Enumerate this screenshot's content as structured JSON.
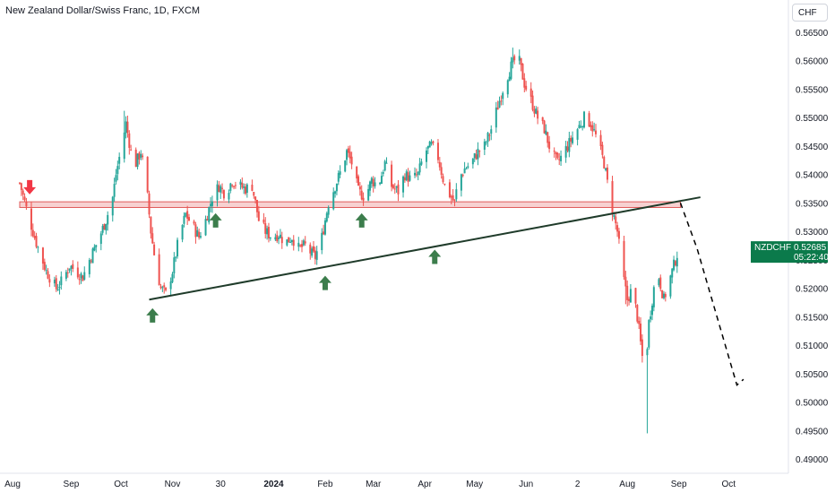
{
  "header": {
    "title": "New Zealand Dollar/Swiss Franc, 1D, FXCM",
    "currency_button": "CHF"
  },
  "price_tag": {
    "symbol": "NZDCHF",
    "price": "0.52685",
    "countdown": "05:22:40",
    "color": "#0b7a4b"
  },
  "colors": {
    "up": "#26a69a",
    "down": "#ef5350",
    "zone_fill": "#f5c6c6",
    "zone_border": "#e05a5a",
    "trendline": "#1f3b2a",
    "arrow_up": "#3c7d4c",
    "arrow_down": "#f23645"
  },
  "chart_data": {
    "type": "candlestick",
    "ylim": [
      0.4875,
      0.5685
    ],
    "y_ticks": [
      "0.56500",
      "0.56000",
      "0.55500",
      "0.55000",
      "0.54500",
      "0.54000",
      "0.53500",
      "0.53000",
      "0.52500",
      "0.52000",
      "0.51500",
      "0.51000",
      "0.50500",
      "0.50000",
      "0.49500",
      "0.49000"
    ],
    "x_ticks": [
      {
        "label": "Aug",
        "day": 0
      },
      {
        "label": "Sep",
        "day": 31
      },
      {
        "label": "Oct",
        "day": 61
      },
      {
        "label": "Nov",
        "day": 92
      },
      {
        "label": "30",
        "day": 121
      },
      {
        "label": "2024",
        "day": 153,
        "bold": true
      },
      {
        "label": "Feb",
        "day": 184
      },
      {
        "label": "Mar",
        "day": 213
      },
      {
        "label": "Apr",
        "day": 244
      },
      {
        "label": "May",
        "day": 274
      },
      {
        "label": "Jun",
        "day": 305
      },
      {
        "label": "2",
        "day": 336
      },
      {
        "label": "Aug",
        "day": 366
      },
      {
        "label": "Sep",
        "day": 397
      },
      {
        "label": "Oct",
        "day": 427
      }
    ],
    "close_path": [
      [
        0,
        0.5385
      ],
      [
        4,
        0.534
      ],
      [
        10,
        0.528
      ],
      [
        16,
        0.523
      ],
      [
        22,
        0.52
      ],
      [
        26,
        0.5215
      ],
      [
        30,
        0.524
      ],
      [
        34,
        0.523
      ],
      [
        38,
        0.522
      ],
      [
        42,
        0.525
      ],
      [
        48,
        0.529
      ],
      [
        52,
        0.532
      ],
      [
        56,
        0.536
      ],
      [
        58,
        0.54
      ],
      [
        62,
        0.546
      ],
      [
        64,
        0.549
      ],
      [
        67,
        0.544
      ],
      [
        70,
        0.542
      ],
      [
        73,
        0.544
      ],
      [
        76,
        0.539
      ],
      [
        79,
        0.53
      ],
      [
        82,
        0.524
      ],
      [
        85,
        0.52
      ],
      [
        88,
        0.519
      ],
      [
        92,
        0.523
      ],
      [
        96,
        0.529
      ],
      [
        100,
        0.533
      ],
      [
        104,
        0.531
      ],
      [
        108,
        0.529
      ],
      [
        112,
        0.532
      ],
      [
        116,
        0.536
      ],
      [
        120,
        0.538
      ],
      [
        124,
        0.5365
      ],
      [
        128,
        0.539
      ],
      [
        132,
        0.538
      ],
      [
        136,
        0.5375
      ],
      [
        140,
        0.538
      ],
      [
        144,
        0.532
      ],
      [
        148,
        0.53
      ],
      [
        152,
        0.529
      ],
      [
        156,
        0.5295
      ],
      [
        160,
        0.528
      ],
      [
        164,
        0.529
      ],
      [
        168,
        0.527
      ],
      [
        172,
        0.5275
      ],
      [
        176,
        0.526
      ],
      [
        178,
        0.5255
      ],
      [
        182,
        0.529
      ],
      [
        186,
        0.535
      ],
      [
        190,
        0.538
      ],
      [
        194,
        0.541
      ],
      [
        197,
        0.544
      ],
      [
        200,
        0.542
      ],
      [
        204,
        0.537
      ],
      [
        208,
        0.536
      ],
      [
        212,
        0.539
      ],
      [
        216,
        0.538
      ],
      [
        220,
        0.542
      ],
      [
        224,
        0.538
      ],
      [
        228,
        0.537
      ],
      [
        232,
        0.54
      ],
      [
        236,
        0.539
      ],
      [
        240,
        0.54
      ],
      [
        244,
        0.544
      ],
      [
        248,
        0.545
      ],
      [
        252,
        0.543
      ],
      [
        256,
        0.538
      ],
      [
        260,
        0.536
      ],
      [
        262,
        0.535
      ],
      [
        264,
        0.539
      ],
      [
        268,
        0.541
      ],
      [
        272,
        0.542
      ],
      [
        276,
        0.544
      ],
      [
        280,
        0.545
      ],
      [
        284,
        0.548
      ],
      [
        288,
        0.552
      ],
      [
        292,
        0.556
      ],
      [
        296,
        0.559
      ],
      [
        300,
        0.561
      ],
      [
        304,
        0.556
      ],
      [
        308,
        0.553
      ],
      [
        312,
        0.55
      ],
      [
        316,
        0.548
      ],
      [
        320,
        0.544
      ],
      [
        324,
        0.542
      ],
      [
        328,
        0.544
      ],
      [
        332,
        0.546
      ],
      [
        336,
        0.548
      ],
      [
        340,
        0.55
      ],
      [
        344,
        0.549
      ],
      [
        348,
        0.546
      ],
      [
        352,
        0.542
      ],
      [
        356,
        0.535
      ],
      [
        360,
        0.53
      ],
      [
        363,
        0.523
      ],
      [
        366,
        0.518
      ],
      [
        369,
        0.52
      ],
      [
        372,
        0.515
      ],
      [
        375,
        0.508
      ],
      [
        377,
        0.506
      ],
      [
        379,
        0.514
      ],
      [
        382,
        0.52
      ],
      [
        385,
        0.522
      ],
      [
        388,
        0.518
      ],
      [
        391,
        0.521
      ],
      [
        394,
        0.524
      ],
      [
        397,
        0.527
      ]
    ],
    "annotations": {
      "resistance_zone": {
        "y_top": 0.5352,
        "y_bottom": 0.5342,
        "day_start": 0,
        "day_end": 398
      },
      "trendline": {
        "from": {
          "day": 78,
          "y": 0.518
        },
        "to": {
          "day": 410,
          "y": 0.536
        }
      },
      "projection": [
        {
          "day": 398,
          "y": 0.535
        },
        {
          "day": 408,
          "y": 0.527
        },
        {
          "day": 432,
          "y": 0.503
        },
        {
          "day": 436,
          "y": 0.504
        }
      ],
      "up_arrows": [
        {
          "day": 80,
          "y": 0.5165
        },
        {
          "day": 118,
          "y": 0.5332
        },
        {
          "day": 184,
          "y": 0.5222
        },
        {
          "day": 206,
          "y": 0.5332
        },
        {
          "day": 250,
          "y": 0.5268
        }
      ],
      "down_arrows": [
        {
          "day": 6,
          "y": 0.5365
        }
      ]
    }
  }
}
